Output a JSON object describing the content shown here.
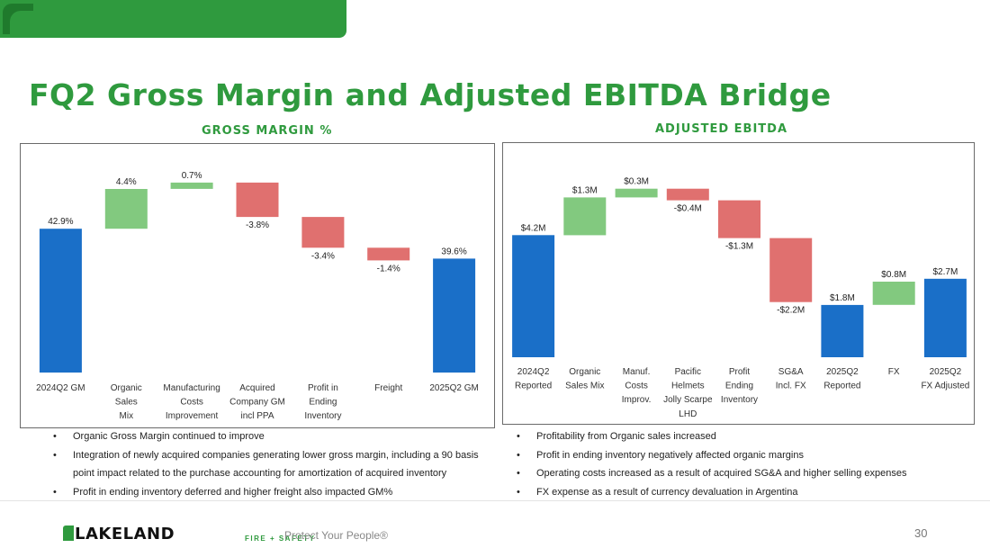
{
  "page": {
    "title": "FQ2 Gross Margin and Adjusted EBITDA Bridge",
    "footer_tagline": "Protect Your People®",
    "page_number": "30",
    "brand": {
      "name": "LAKELAND",
      "sub": "FIRE + SAFETY"
    }
  },
  "colors": {
    "green": "#2f9a3e",
    "increase": "#82c97f",
    "decrease": "#e0706f",
    "total": "#1a6fc8"
  },
  "chart_data": [
    {
      "type": "bar",
      "subtype": "waterfall",
      "title": "GROSS MARGIN %",
      "categories": [
        [
          "2024Q2 GM"
        ],
        [
          "Organic",
          "Sales",
          "Mix"
        ],
        [
          "Manufacturing",
          "Costs",
          "Improvement"
        ],
        [
          "Acquired",
          "Company GM",
          "incl PPA"
        ],
        [
          "Profit in",
          "Ending",
          "Inventory"
        ],
        [
          "Freight"
        ],
        [
          "2025Q2 GM"
        ]
      ],
      "values": [
        42.9,
        4.4,
        0.7,
        -3.8,
        -3.4,
        -1.4,
        39.6
      ],
      "kinds": [
        "total",
        "increase",
        "increase",
        "decrease",
        "decrease",
        "decrease",
        "total"
      ],
      "labels": [
        "42.9%",
        "4.4%",
        "0.7%",
        "-3.8%",
        "-3.4%",
        "-1.4%",
        "39.6%"
      ]
    },
    {
      "type": "bar",
      "subtype": "waterfall",
      "title": "ADJUSTED EBITDA",
      "categories": [
        [
          "2024Q2",
          "Reported"
        ],
        [
          "Organic",
          "Sales Mix"
        ],
        [
          "Manuf.",
          "Costs",
          "Improv."
        ],
        [
          "Pacific",
          "Helmets",
          "Jolly Scarpe",
          "LHD"
        ],
        [
          "Profit",
          "Ending",
          "Inventory"
        ],
        [
          "SG&A",
          "Incl. FX"
        ],
        [
          "2025Q2",
          "Reported"
        ],
        [
          "FX"
        ],
        [
          "2025Q2",
          "FX Adjusted"
        ]
      ],
      "values": [
        4.2,
        1.3,
        0.3,
        -0.4,
        -1.3,
        -2.2,
        1.8,
        0.8,
        2.7
      ],
      "kinds": [
        "total",
        "increase",
        "increase",
        "decrease",
        "decrease",
        "decrease",
        "total",
        "increase",
        "total"
      ],
      "labels": [
        "$4.2M",
        "$1.3M",
        "$0.3M",
        "-$0.4M",
        "-$1.3M",
        "-$2.2M",
        "$1.8M",
        "$0.8M",
        "$2.7M"
      ]
    }
  ],
  "bullets_left": [
    "Organic Gross Margin continued to improve",
    "Integration of newly acquired companies generating lower gross margin, including a 90 basis point impact related to the purchase accounting for amortization of acquired inventory",
    "Profit in ending inventory deferred and higher freight also impacted GM%"
  ],
  "bullets_right": [
    "Profitability from Organic sales increased",
    "Profit in ending inventory negatively affected organic margins",
    "Operating costs increased as a result of acquired SG&A and higher selling expenses",
    "FX expense as a result of currency devaluation in Argentina"
  ]
}
